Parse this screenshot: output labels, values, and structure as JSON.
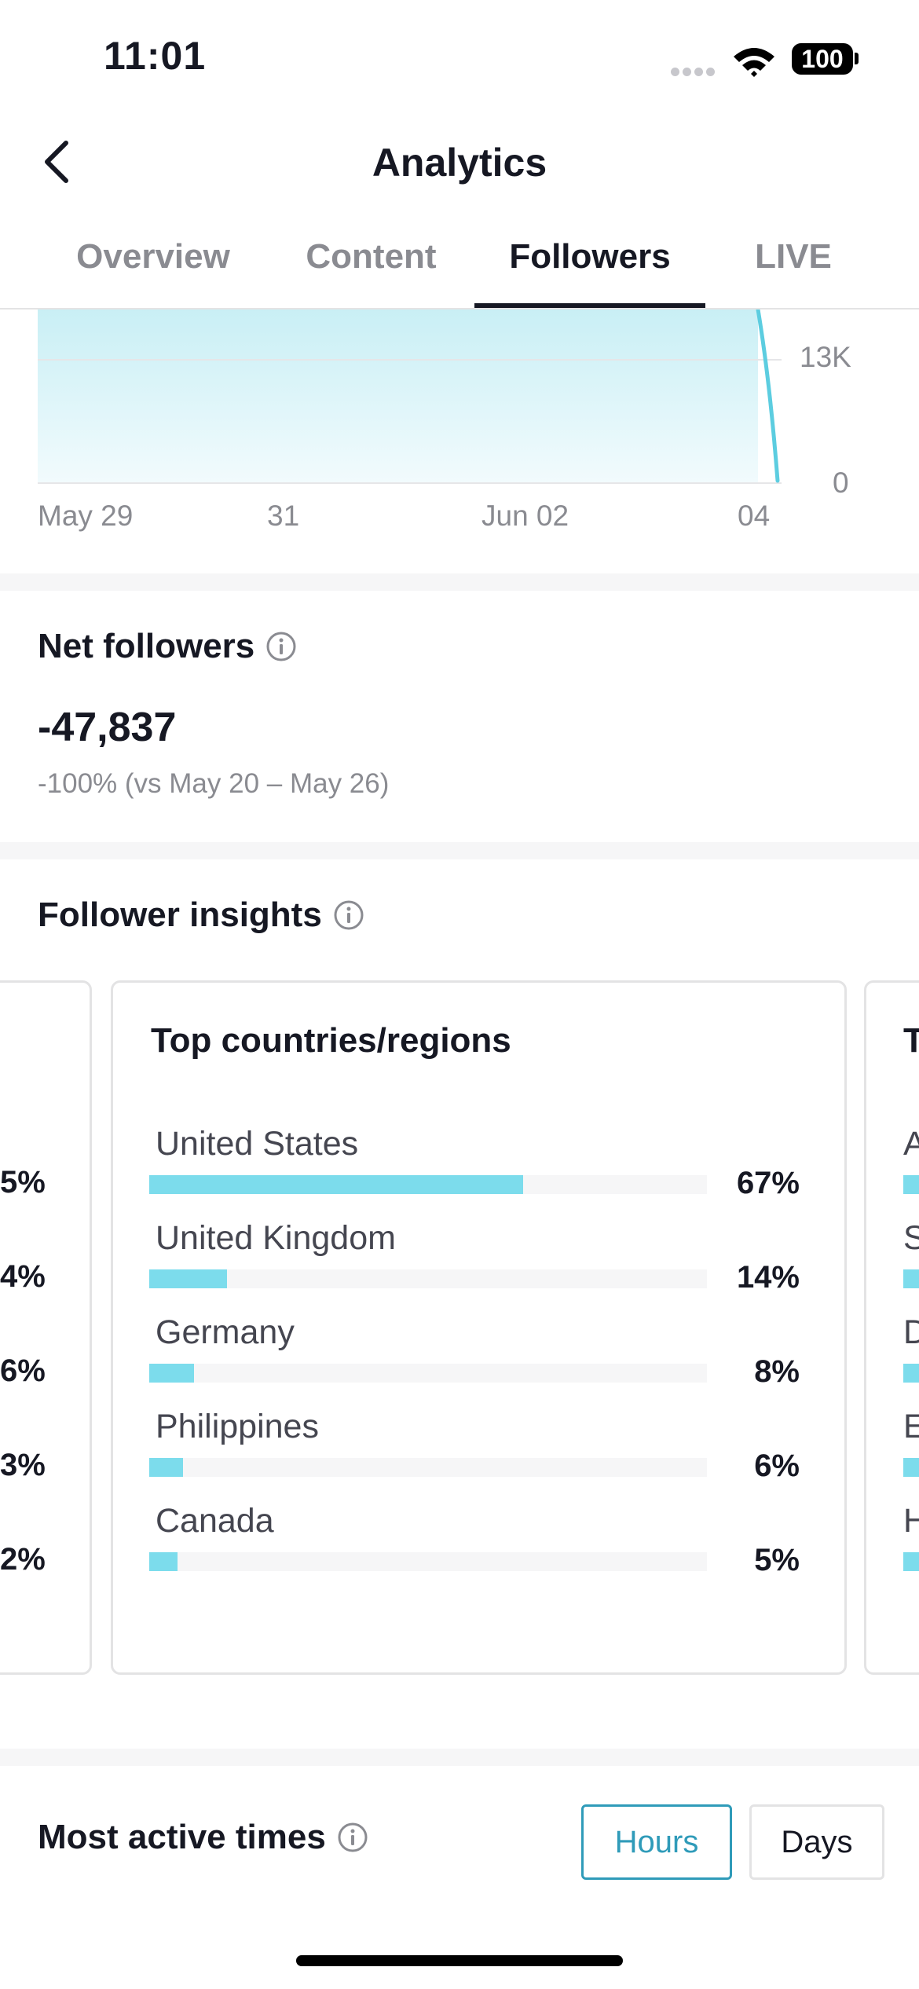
{
  "status_bar": {
    "time": "11:01",
    "battery": "100"
  },
  "header": {
    "title": "Analytics"
  },
  "tabs": [
    {
      "label": "Overview"
    },
    {
      "label": "Content"
    },
    {
      "label": "Followers"
    },
    {
      "label": "LIVE"
    }
  ],
  "active_tab": "Followers",
  "chart_data": {
    "type": "area",
    "x_ticks": [
      "May 29",
      "31",
      "Jun 02",
      "04"
    ],
    "y_ticks": [
      "13K",
      "0"
    ],
    "colors": {
      "fill": "#d6f3f7",
      "line": "#5ccde0"
    }
  },
  "net_followers": {
    "title": "Net followers",
    "value": "-47,837",
    "comparison": "-100% (vs May 20 – May 26)"
  },
  "follower_insights": {
    "title": "Follower insights",
    "left_card_percents": [
      "5%",
      "4%",
      "6%",
      "3%",
      "2%"
    ],
    "top_countries": {
      "title": "Top countries/regions",
      "items": [
        {
          "name": "United States",
          "percent": "67%",
          "fraction": 0.67
        },
        {
          "name": "United Kingdom",
          "percent": "14%",
          "fraction": 0.14
        },
        {
          "name": "Germany",
          "percent": "8%",
          "fraction": 0.08
        },
        {
          "name": "Philippines",
          "percent": "6%",
          "fraction": 0.06
        },
        {
          "name": "Canada",
          "percent": "5%",
          "fraction": 0.05
        }
      ]
    },
    "right_card": {
      "title_initial": "T",
      "initials": [
        "A",
        "S",
        "D",
        "E",
        "H"
      ]
    }
  },
  "most_active": {
    "title": "Most active times",
    "hours_label": "Hours",
    "days_label": "Days"
  },
  "colors": {
    "accent": "#2f9bb9",
    "bar": "#7cdcec",
    "text": "#161823",
    "muted": "#8a8b91"
  }
}
